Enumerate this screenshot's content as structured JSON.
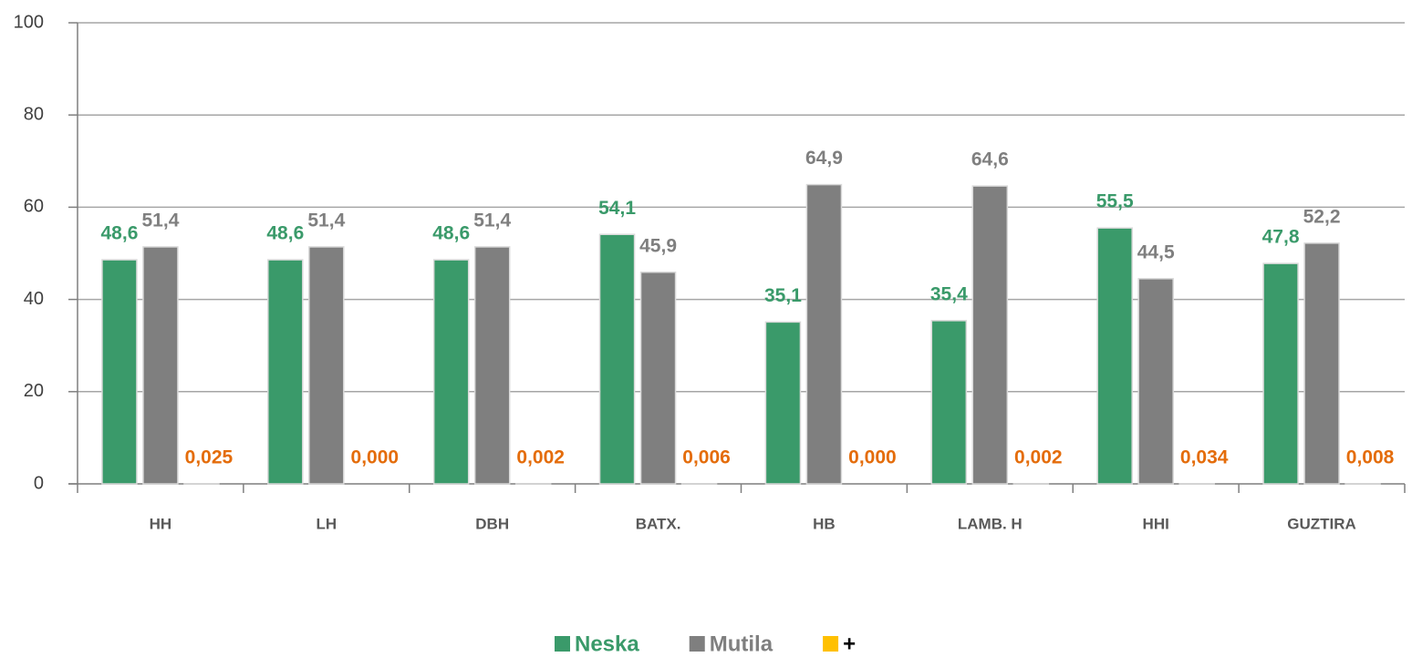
{
  "chart_data": {
    "type": "bar",
    "categories": [
      "HH",
      "LH",
      "DBH",
      "BATX.",
      "HB",
      "LAMB. H",
      "HHI",
      "GUZTIRA"
    ],
    "series": [
      {
        "name": "Neska",
        "color": "#3a9a6a",
        "label_color": "#3a9a6a",
        "legend_text_color": "#3a9a6a",
        "values": [
          48.6,
          48.6,
          48.6,
          54.1,
          35.1,
          35.4,
          55.5,
          47.8
        ],
        "value_labels": [
          "48,6",
          "48,6",
          "48,6",
          "54,1",
          "35,1",
          "35,4",
          "55,5",
          "47,8"
        ]
      },
      {
        "name": "Mutila",
        "color": "#7f7f7f",
        "label_color": "#7f7f7f",
        "legend_text_color": "#7f7f7f",
        "values": [
          51.4,
          51.4,
          51.4,
          45.9,
          64.9,
          64.6,
          44.5,
          52.2
        ],
        "value_labels": [
          "51,4",
          "51,4",
          "51,4",
          "45,9",
          "64,9",
          "64,6",
          "44,5",
          "52,2"
        ]
      },
      {
        "name": "+",
        "color": "#ffc000",
        "label_color": "#e46c0a",
        "legend_text_color": "#000000",
        "values": [
          0.025,
          0.0,
          0.002,
          0.006,
          0.0,
          0.002,
          0.034,
          0.008
        ],
        "value_labels": [
          "0,025",
          "0,000",
          "0,002",
          "0,006",
          "0,000",
          "0,002",
          "0,034",
          "0,008"
        ]
      }
    ],
    "ylim": [
      0,
      100
    ],
    "yticks": [
      0,
      20,
      40,
      60,
      80,
      100
    ],
    "grid": true,
    "legend": "bottom"
  }
}
